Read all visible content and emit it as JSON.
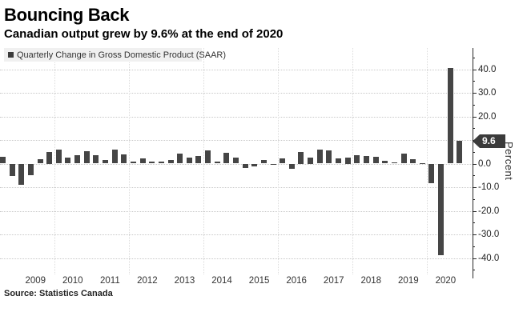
{
  "chart_data": {
    "type": "bar",
    "title": "Bouncing Back",
    "subtitle": "Canadian output grew by 9.6% at the end of 2020",
    "legend": "Quarterly Change in Gross Domestic Product (SAAR)",
    "source": "Source: Statistics Canada",
    "ylabel": "Percent",
    "ylim": [
      -45,
      45
    ],
    "yticks": [
      40,
      30,
      20,
      10,
      0,
      -10,
      -20,
      -30,
      -40
    ],
    "ytick_labels": [
      "40.0",
      "30.0",
      "20.0",
      "10.0",
      "0.0",
      "-10.0",
      "-20.0",
      "-30.0",
      "-40.0"
    ],
    "minor_ytick_interval": 5,
    "grid": "dotted horizontal every 10 pct, dotted vertical every 2 years",
    "legend_position": "top-left",
    "last_value": 9.6,
    "last_value_label": "9.6",
    "year_axis_labels": [
      "2009",
      "2010",
      "2011",
      "2012",
      "2013",
      "2014",
      "2015",
      "2016",
      "2017",
      "2018",
      "2019",
      "2020"
    ],
    "quarters": [
      "2008 Q3",
      "2008 Q4",
      "2009 Q1",
      "2009 Q2",
      "2009 Q3",
      "2009 Q4",
      "2010 Q1",
      "2010 Q2",
      "2010 Q3",
      "2010 Q4",
      "2011 Q1",
      "2011 Q2",
      "2011 Q3",
      "2011 Q4",
      "2012 Q1",
      "2012 Q2",
      "2012 Q3",
      "2012 Q4",
      "2013 Q1",
      "2013 Q2",
      "2013 Q3",
      "2013 Q4",
      "2014 Q1",
      "2014 Q2",
      "2014 Q3",
      "2014 Q4",
      "2015 Q1",
      "2015 Q2",
      "2015 Q3",
      "2015 Q4",
      "2016 Q1",
      "2016 Q2",
      "2016 Q3",
      "2016 Q4",
      "2017 Q1",
      "2017 Q2",
      "2017 Q3",
      "2017 Q4",
      "2018 Q1",
      "2018 Q2",
      "2018 Q3",
      "2018 Q4",
      "2019 Q1",
      "2019 Q2",
      "2019 Q3",
      "2019 Q4",
      "2020 Q1",
      "2020 Q2",
      "2020 Q3",
      "2020 Q4"
    ],
    "values": [
      3.0,
      -5.2,
      -9.0,
      -4.9,
      1.8,
      5.0,
      5.8,
      2.7,
      3.5,
      5.3,
      3.4,
      1.4,
      6.1,
      3.9,
      0.8,
      2.2,
      1.0,
      0.9,
      1.6,
      4.1,
      2.7,
      3.1,
      5.6,
      0.7,
      4.5,
      2.4,
      -2.0,
      -1.2,
      1.6,
      -0.3,
      2.1,
      -2.3,
      5.0,
      2.5,
      5.9,
      5.6,
      2.2,
      2.5,
      3.7,
      3.2,
      2.9,
      1.1,
      0.5,
      4.4,
      1.7,
      0.3,
      -8.2,
      -38.7,
      40.5,
      9.6
    ]
  },
  "colors": {
    "bar": "#454545",
    "badge_bg": "#3b3b3b",
    "badge_text": "#ffffff",
    "legend_bg": "#f0f0f0",
    "legend_marker": "#3b3b3b",
    "axis_line": "#2a2a2a",
    "grid_horizontal": "#c9c9c9",
    "grid_vertical": "#dcdcdc",
    "text": "#000000",
    "tick_text": "#222222"
  }
}
